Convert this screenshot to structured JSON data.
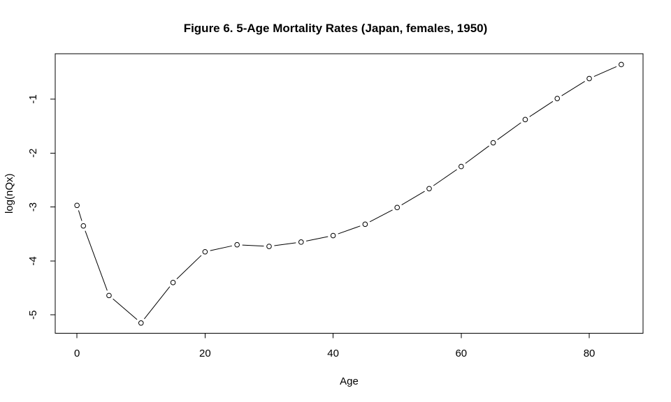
{
  "chart_data": {
    "type": "line",
    "title": "Figure 6. 5-Age Mortality Rates (Japan, females, 1950)",
    "xlabel": "Age",
    "ylabel": "log(nQx)",
    "x": [
      0,
      1,
      5,
      10,
      15,
      20,
      25,
      30,
      35,
      40,
      45,
      50,
      55,
      60,
      65,
      70,
      75,
      80,
      85
    ],
    "y": [
      -2.97,
      -3.35,
      -4.64,
      -5.15,
      -4.4,
      -3.83,
      -3.7,
      -3.73,
      -3.65,
      -3.53,
      -3.32,
      -3.01,
      -2.66,
      -2.25,
      -1.81,
      -1.38,
      -0.99,
      -0.62,
      -0.36
    ],
    "xlim": [
      -3.4,
      88.4
    ],
    "ylim": [
      -5.34,
      -0.16
    ],
    "xticks": [
      0,
      20,
      40,
      60,
      80
    ],
    "yticks": [
      -5,
      -4,
      -3,
      -2,
      -1
    ],
    "grid": false,
    "legend": "none",
    "marker": "open-circle",
    "line_style": "r-base-type-b",
    "line_color": "#000000",
    "text_color": "#000000",
    "background_color": "#ffffff"
  }
}
